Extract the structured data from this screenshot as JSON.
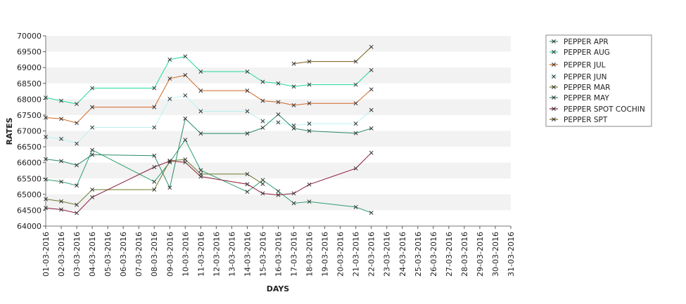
{
  "chart_data": {
    "type": "line",
    "xlabel": "DAYS",
    "ylabel": "RATES",
    "ylim": [
      64000,
      70000
    ],
    "yticks": [
      64000,
      64500,
      65000,
      65500,
      66000,
      66500,
      67000,
      67500,
      68000,
      68500,
      69000,
      69500,
      70000
    ],
    "categories": [
      "01-03-2016",
      "02-03-2016",
      "03-03-2016",
      "04-03-2016",
      "05-03-2016",
      "06-03-2016",
      "07-03-2016",
      "08-03-2016",
      "09-03-2016",
      "10-03-2016",
      "11-03-2016",
      "12-03-2016",
      "13-03-2016",
      "14-03-2016",
      "15-03-2016",
      "16-03-2016",
      "17-03-2016",
      "18-03-2016",
      "19-03-2016",
      "20-03-2016",
      "21-03-2016",
      "22-03-2016",
      "23-03-2016",
      "24-03-2016",
      "25-03-2016",
      "26-03-2016",
      "27-03-2016",
      "28-03-2016",
      "29-03-2016",
      "30-03-2016",
      "31-03-2016"
    ],
    "grid": "horizontal",
    "legend_position": "right",
    "series": [
      {
        "name": "PEPPER APR",
        "color": "#2e9e6f",
        "points": [
          [
            0,
            65470
          ],
          [
            1,
            65400
          ],
          [
            2,
            65280
          ],
          [
            3,
            66400
          ],
          [
            7,
            65400
          ],
          [
            8,
            66010
          ],
          [
            9,
            66720
          ],
          [
            10,
            65760
          ],
          [
            13,
            65080
          ],
          [
            14,
            65450
          ],
          [
            15,
            65100
          ],
          [
            16,
            64720
          ],
          [
            17,
            64770
          ],
          [
            20,
            64600
          ],
          [
            21,
            64420
          ]
        ]
      },
      {
        "name": "PEPPER AUG",
        "color": "#1fd6a0",
        "points": [
          [
            0,
            68050
          ],
          [
            1,
            67950
          ],
          [
            2,
            67850
          ],
          [
            3,
            68350
          ],
          [
            7,
            68350
          ],
          [
            8,
            69250
          ],
          [
            9,
            69350
          ],
          [
            10,
            68870
          ],
          [
            13,
            68870
          ],
          [
            14,
            68550
          ],
          [
            15,
            68500
          ],
          [
            16,
            68400
          ],
          [
            17,
            68460
          ],
          [
            20,
            68460
          ],
          [
            21,
            68920
          ]
        ]
      },
      {
        "name": "PEPPER JUL",
        "color": "#d2661f",
        "points": [
          [
            0,
            67420
          ],
          [
            1,
            67380
          ],
          [
            2,
            67250
          ],
          [
            3,
            67750
          ],
          [
            7,
            67750
          ],
          [
            8,
            68650
          ],
          [
            9,
            68760
          ],
          [
            10,
            68270
          ],
          [
            13,
            68270
          ],
          [
            14,
            67950
          ],
          [
            15,
            67910
          ],
          [
            16,
            67810
          ],
          [
            17,
            67870
          ],
          [
            20,
            67870
          ],
          [
            21,
            68310
          ]
        ]
      },
      {
        "name": "PEPPER JUN",
        "color": "#b8f2f2",
        "points": [
          [
            0,
            66810
          ],
          [
            1,
            66750
          ],
          [
            2,
            66600
          ],
          [
            3,
            67110
          ],
          [
            7,
            67110
          ],
          [
            8,
            68010
          ],
          [
            9,
            68120
          ],
          [
            10,
            67620
          ],
          [
            13,
            67620
          ],
          [
            14,
            67310
          ],
          [
            15,
            67270
          ],
          [
            16,
            67170
          ],
          [
            17,
            67230
          ],
          [
            20,
            67230
          ],
          [
            21,
            67660
          ]
        ]
      },
      {
        "name": "PEPPER MAR",
        "color": "#6b7a2a",
        "points": [
          [
            0,
            64850
          ],
          [
            1,
            64780
          ],
          [
            2,
            64670
          ],
          [
            3,
            65150
          ],
          [
            7,
            65150
          ],
          [
            8,
            66060
          ],
          [
            9,
            66100
          ],
          [
            10,
            65640
          ],
          [
            13,
            65640
          ],
          [
            14,
            65330
          ]
        ]
      },
      {
        "name": "PEPPER MAY",
        "color": "#2a8a63",
        "points": [
          [
            0,
            66110
          ],
          [
            1,
            66050
          ],
          [
            2,
            65920
          ],
          [
            3,
            66250
          ],
          [
            7,
            66220
          ],
          [
            8,
            65210
          ],
          [
            9,
            67390
          ],
          [
            10,
            66920
          ],
          [
            13,
            66920
          ],
          [
            14,
            67100
          ],
          [
            15,
            67520
          ],
          [
            16,
            67080
          ],
          [
            17,
            67000
          ],
          [
            20,
            66930
          ],
          [
            21,
            67080
          ]
        ]
      },
      {
        "name": "PEPPER SPOT COCHIN",
        "color": "#8b1a3a",
        "points": [
          [
            0,
            64570
          ],
          [
            1,
            64520
          ],
          [
            2,
            64410
          ],
          [
            3,
            64910
          ],
          [
            7,
            65860
          ],
          [
            8,
            66050
          ],
          [
            9,
            66010
          ],
          [
            10,
            65560
          ],
          [
            13,
            65320
          ],
          [
            14,
            65030
          ],
          [
            15,
            64980
          ],
          [
            16,
            65030
          ],
          [
            17,
            65310
          ],
          [
            20,
            65820
          ],
          [
            21,
            66310
          ]
        ]
      },
      {
        "name": "PEPPER SPT",
        "color": "#7a5a14",
        "points": [
          [
            16,
            69120
          ],
          [
            17,
            69190
          ],
          [
            20,
            69190
          ],
          [
            21,
            69650
          ]
        ]
      }
    ]
  }
}
